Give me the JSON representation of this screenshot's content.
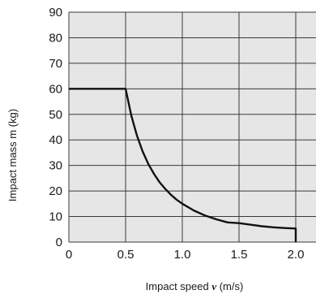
{
  "chart_data": {
    "type": "line",
    "title": "",
    "xlabel": {
      "prefix": "Impact speed ",
      "var": "v",
      "suffix": " (m/s)"
    },
    "ylabel": "Impact mass m (kg)",
    "xlim": [
      0,
      2.15
    ],
    "ylim": [
      0,
      90
    ],
    "x_ticks": [
      0,
      0.5,
      1.0,
      1.5,
      2.0
    ],
    "x_tick_labels": [
      "0",
      "0.5",
      "1.0",
      "1.5",
      "2.0"
    ],
    "y_ticks": [
      0,
      10,
      20,
      30,
      40,
      50,
      60,
      70,
      80,
      90
    ],
    "y_tick_labels": [
      "0",
      "10",
      "20",
      "30",
      "40",
      "50",
      "60",
      "70",
      "80",
      "90"
    ],
    "grid": true,
    "legend": "none",
    "colors": {
      "plot_background": "#e6e6e6",
      "grid": "#3a3a3a",
      "line": "#111111"
    },
    "series": [
      {
        "x": [
          0,
          0.5,
          0.55,
          0.6,
          0.65,
          0.7,
          0.75,
          0.8,
          0.85,
          0.9,
          0.95,
          1.0,
          1.1,
          1.2,
          1.3,
          1.4,
          1.5,
          1.6,
          1.7,
          1.8,
          1.9,
          2.0,
          2.0
        ],
        "y": [
          60,
          60,
          49.6,
          41.7,
          35.5,
          30.6,
          26.7,
          23.4,
          20.8,
          18.5,
          16.6,
          15.0,
          12.4,
          10.4,
          8.9,
          7.7,
          7.4,
          6.8,
          6.2,
          5.8,
          5.5,
          5.3,
          0
        ]
      }
    ]
  }
}
